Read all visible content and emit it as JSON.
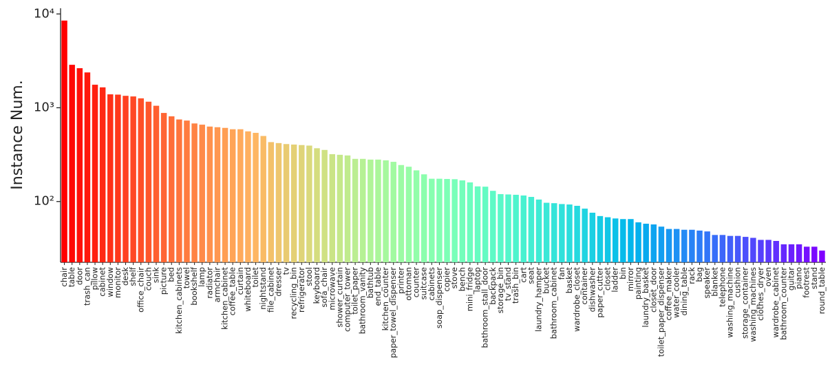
{
  "chart_data": {
    "type": "bar",
    "y_label": "Instance Num.",
    "log_scale": true,
    "colormap": "rainbow_r",
    "categories": [
      "chair",
      "table",
      "door",
      "trash_can",
      "pillow",
      "cabinet",
      "window",
      "monitor",
      "desk",
      "shelf",
      "office_chair",
      "couch",
      "sink",
      "picture",
      "bed",
      "kitchen_cabinets",
      "towel",
      "bookshelf",
      "lamp",
      "radiator",
      "armchair",
      "kitchen_cabinet",
      "coffee_table",
      "curtain",
      "whiteboard",
      "toilet",
      "nightstand",
      "file_cabinet",
      "dresser",
      "tv",
      "recycling_bin",
      "refrigerator",
      "stool",
      "keyboard",
      "sofa_chair",
      "microwave",
      "shower_curtain",
      "computer_tower",
      "toilet_paper",
      "bathroom_vanity",
      "bathtub",
      "end_table",
      "kitchen_counter",
      "paper_towel_dispenser",
      "printer",
      "ottoman",
      "counter",
      "suitcase",
      "cabinets",
      "soap_dispenser",
      "copier",
      "stove",
      "bench",
      "mini_fridge",
      "laptop",
      "bathroom_stall_door",
      "backpack",
      "storage_bin",
      "tv_stand",
      "trash_bin",
      "cart",
      "seat",
      "laundry_hamper",
      "bucket",
      "bathroom_cabinet",
      "fan",
      "basket",
      "wardrobe_closet",
      "container",
      "dishwasher",
      "paper_cutter",
      "closet",
      "ladder",
      "bin",
      "mirror",
      "painting",
      "laundry_basket",
      "closet_door",
      "toilet_paper_dispenser",
      "coffee_maker",
      "water_cooler",
      "dining_table",
      "rack",
      "bag",
      "speaker",
      "blanket",
      "telephone",
      "washing_machine",
      "cushion",
      "storage_container",
      "washing_machines",
      "clothes_dryer",
      "oven",
      "wardrobe_cabinet",
      "bathroom_counter",
      "guitar",
      "piano",
      "footrest",
      "stand",
      "round_table"
    ],
    "values": [
      8500,
      2870,
      2640,
      2380,
      1760,
      1650,
      1390,
      1380,
      1340,
      1320,
      1260,
      1160,
      1050,
      880,
      810,
      750,
      730,
      680,
      660,
      630,
      620,
      610,
      590,
      590,
      560,
      540,
      500,
      430,
      420,
      410,
      405,
      400,
      395,
      370,
      355,
      320,
      315,
      310,
      285,
      285,
      280,
      280,
      275,
      265,
      245,
      235,
      215,
      195,
      175,
      175,
      174,
      173,
      168,
      160,
      145,
      144,
      130,
      120,
      119,
      118,
      116,
      112,
      105,
      97,
      96,
      94,
      93,
      90,
      84,
      76,
      70,
      68,
      66,
      65,
      65,
      60,
      58,
      57,
      54,
      51,
      51,
      50,
      50,
      49,
      48,
      44,
      44,
      43,
      43,
      42,
      41,
      39,
      39,
      38,
      35,
      35,
      35,
      33,
      33,
      30
    ],
    "ylim": [
      22.5,
      11500
    ],
    "yticks": [
      {
        "value": 100,
        "label": "10²"
      },
      {
        "value": 1000,
        "label": "10³"
      },
      {
        "value": 10000,
        "label": "10⁴"
      }
    ]
  }
}
